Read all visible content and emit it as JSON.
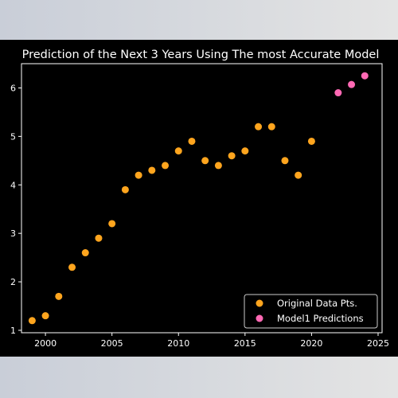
{
  "chart_data": {
    "type": "scatter",
    "title": "Prediction of the Next 3 Years Using The most Accurate Model",
    "xlim": [
      1998.2,
      2025.3
    ],
    "ylim": [
      0.95,
      6.5
    ],
    "xticks": [
      2000,
      2005,
      2010,
      2015,
      2020,
      2025
    ],
    "yticks": [
      1,
      2,
      3,
      4,
      5,
      6
    ],
    "grid": false,
    "legend_position": "lower-right",
    "series": [
      {
        "name": "Original Data Pts.",
        "color": "#ffa51e",
        "x": [
          1999,
          2000,
          2001,
          2002,
          2003,
          2004,
          2005,
          2006,
          2007,
          2008,
          2009,
          2010,
          2011,
          2012,
          2013,
          2014,
          2015,
          2016,
          2017,
          2018,
          2019,
          2020
        ],
        "y": [
          1.2,
          1.3,
          1.7,
          2.3,
          2.6,
          2.9,
          3.2,
          3.9,
          4.2,
          4.3,
          4.4,
          4.7,
          4.9,
          4.5,
          4.4,
          4.6,
          4.7,
          5.2,
          5.2,
          4.5,
          4.2,
          4.9
        ]
      },
      {
        "name": "Model1 Predictions",
        "color": "#ff69b4",
        "x": [
          2022,
          2023,
          2024
        ],
        "y": [
          5.9,
          6.07,
          6.25
        ]
      }
    ]
  }
}
